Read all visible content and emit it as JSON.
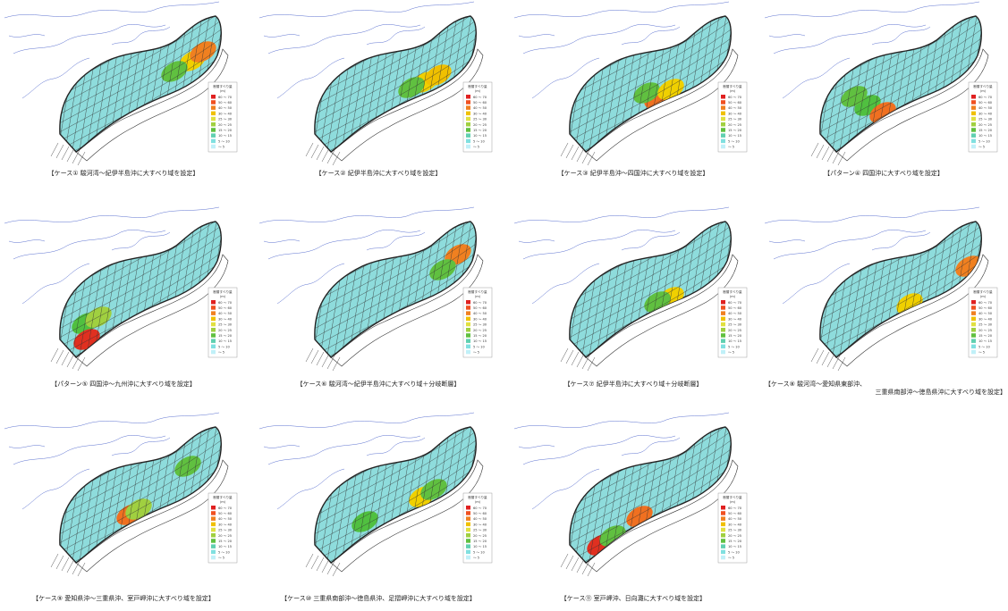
{
  "panels": [
    {
      "caption_lines": [
        "【ケース① 駿河湾～紀伊半島沖に大すべり域を設定】"
      ]
    },
    {
      "caption_lines": [
        "【ケース② 紀伊半島沖に大すべり域を設定】"
      ]
    },
    {
      "caption_lines": [
        "【ケース③ 紀伊半島沖～四国沖に大すべり域を設定】"
      ]
    },
    {
      "caption_lines": [
        "【パターン④ 四国沖に大すべり域を設定】"
      ]
    },
    {
      "caption_lines": [
        "【パターン⑤ 四国沖～九州沖に大すべり域を設定】"
      ]
    },
    {
      "caption_lines": [
        "【ケース⑥ 駿河湾～紀伊半島沖に大すべり域＋分岐断層】"
      ]
    },
    {
      "caption_lines": [
        "【ケース⑦ 紀伊半島沖に大すべり域＋分岐断層】"
      ]
    },
    {
      "caption_lines": [
        "【ケース⑧ 駿河湾～愛知県東部沖、",
        "三重県南部沖～徳島県沖に大すべり域を設定】"
      ]
    },
    {
      "caption_lines": [
        "【ケース⑨ 愛知県沖～三重県沖、室戸岬沖に大すべり域を設定】"
      ]
    },
    {
      "caption_lines": [
        "【ケース⑩ 三重県南部沖～徳島県沖、足摺岬沖に大すべり域を設定】"
      ]
    },
    {
      "caption_lines": [
        "【ケース⑪ 室戸岬沖、日向灘に大すべり域を設定】"
      ]
    }
  ],
  "legend": {
    "title": "断層すべり量",
    "unit": "(m)",
    "items": [
      "60 ～ 70",
      "50 ～ 60",
      "40 ～ 50",
      "30 ～ 40",
      "25 ～ 30",
      "20 ～ 25",
      "15 ～ 20",
      "10 ～ 15",
      "5 ～ 10",
      "～ 5"
    ]
  }
}
